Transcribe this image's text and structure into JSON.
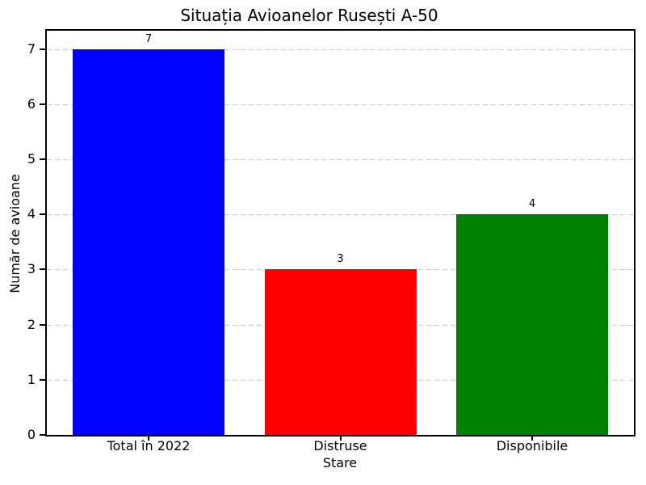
{
  "chart_data": {
    "type": "bar",
    "title": "Situația Avioanelor Rusești A-50",
    "xlabel": "Stare",
    "ylabel": "Număr de avioane",
    "categories": [
      "Total în 2022",
      "Distruse",
      "Disponibile"
    ],
    "values": [
      7,
      3,
      4
    ],
    "value_labels": [
      "7",
      "3",
      "4"
    ],
    "bar_colors": [
      "#0000ff",
      "#ff0000",
      "#008000"
    ],
    "yticks": [
      0,
      1,
      2,
      3,
      4,
      5,
      6,
      7
    ],
    "ylim": [
      0,
      7.33
    ],
    "grid": "horizontal-dashed",
    "gridline_color": "#cccccc",
    "spine_color": "#000000",
    "background_color": "#ffffff",
    "legend": "none"
  }
}
